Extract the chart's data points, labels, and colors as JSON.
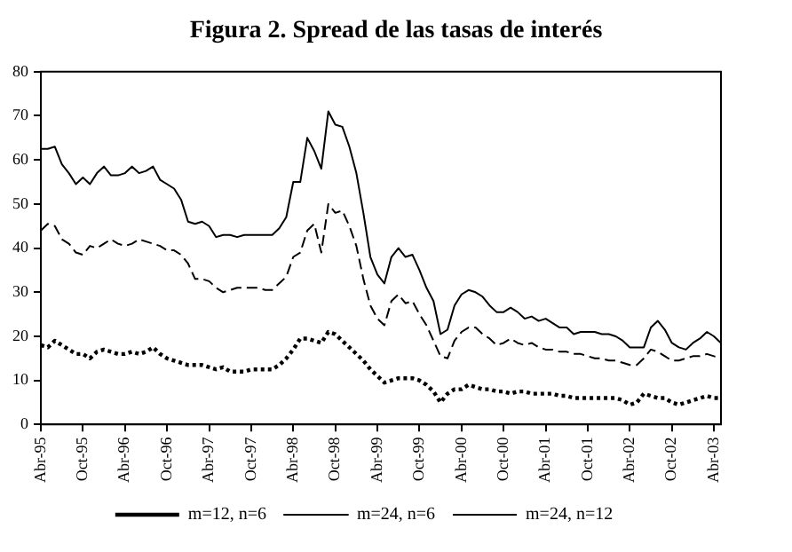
{
  "chart_data": {
    "type": "line",
    "title": "Figura 2. Spread de las tasas de interés",
    "categories": [
      "Abr-95",
      null,
      null,
      null,
      null,
      null,
      "Oct-95",
      null,
      null,
      null,
      null,
      null,
      "Abr-96",
      null,
      null,
      null,
      null,
      null,
      "Oct-96",
      null,
      null,
      null,
      null,
      null,
      "Abr-97",
      null,
      null,
      null,
      null,
      null,
      "Oct-97",
      null,
      null,
      null,
      null,
      null,
      "Abr-98",
      null,
      null,
      null,
      null,
      null,
      "Oct-98",
      null,
      null,
      null,
      null,
      null,
      "Abr-99",
      null,
      null,
      null,
      null,
      null,
      "Oct-99",
      null,
      null,
      null,
      null,
      null,
      "Abr-00",
      null,
      null,
      null,
      null,
      null,
      "Oct-00",
      null,
      null,
      null,
      null,
      null,
      "Abr-01",
      null,
      null,
      null,
      null,
      null,
      "Oct-01",
      null,
      null,
      null,
      null,
      null,
      "Abr-02",
      null,
      null,
      null,
      null,
      null,
      "Oct-02",
      null,
      null,
      null,
      null,
      null,
      "Abr-03",
      null
    ],
    "series": [
      {
        "name": "m=12, n=6",
        "color": "#000000",
        "line_style": "dotted",
        "values": [
          18,
          17.5,
          19,
          18,
          17,
          16,
          16,
          15,
          16.5,
          17,
          16.5,
          16,
          16,
          16.5,
          16,
          16.5,
          17.5,
          16,
          15,
          14.5,
          14,
          13.5,
          13.5,
          13.5,
          13,
          12.5,
          13,
          12,
          12,
          12,
          12.5,
          12.5,
          12.5,
          12.5,
          13.5,
          15,
          17,
          19.5,
          19.5,
          19,
          18.5,
          21,
          20.5,
          19,
          17.5,
          16,
          14.5,
          12.5,
          11,
          9.5,
          10,
          10.5,
          10.5,
          10.5,
          10,
          9,
          7.5,
          5,
          7,
          8,
          8,
          9,
          8.5,
          8,
          8,
          7.5,
          7.5,
          7,
          7.5,
          7.5,
          7,
          7,
          7,
          7,
          6.5,
          6.5,
          6,
          6,
          6,
          6,
          6,
          6,
          6,
          5.5,
          4.5,
          5,
          7,
          6.5,
          6,
          6,
          5,
          4.5,
          5,
          5.5,
          6,
          6.5,
          6,
          6
        ]
      },
      {
        "name": "m=24, n=6",
        "color": "#000000",
        "line_style": "solid",
        "values": [
          62.5,
          62.5,
          63,
          59,
          57,
          54.5,
          56,
          54.5,
          57,
          58.5,
          56.5,
          56.5,
          57,
          58.5,
          57,
          57.5,
          58.5,
          55.5,
          54.5,
          53.5,
          51,
          46,
          45.5,
          46,
          45,
          42.5,
          43,
          43,
          42.5,
          43,
          43,
          43,
          43,
          43,
          44.5,
          47,
          55,
          55,
          65,
          62,
          58,
          71,
          68,
          67.5,
          63,
          57,
          48,
          38,
          34,
          32,
          38,
          40,
          38,
          38.5,
          35,
          31,
          28,
          20.5,
          21.5,
          27,
          29.5,
          30.5,
          30,
          29,
          27,
          25.5,
          25.5,
          26.5,
          25.5,
          24,
          24.5,
          23.5,
          24,
          23,
          22,
          22,
          20.5,
          21,
          21,
          21,
          20.5,
          20.5,
          20,
          19,
          17.5,
          17.5,
          17.5,
          22,
          23.5,
          21.5,
          18.5,
          17.5,
          17,
          18.5,
          19.5,
          21,
          20,
          18.5
        ]
      },
      {
        "name": "m=24, n=12",
        "color": "#000000",
        "line_style": "dashed",
        "values": [
          44,
          45.5,
          45,
          42,
          41,
          39,
          38.5,
          40.5,
          40,
          41,
          42,
          41,
          40.5,
          41,
          42,
          41.5,
          41,
          40.5,
          39.5,
          39.5,
          38.5,
          36.5,
          33,
          33,
          32.5,
          31,
          30,
          30.5,
          31,
          31,
          31,
          31,
          30.5,
          30.5,
          32,
          33.5,
          38,
          39,
          44,
          45.5,
          39,
          50,
          48,
          48.5,
          45,
          40.5,
          33,
          27,
          24,
          22.5,
          28,
          29.5,
          27.5,
          28,
          25,
          22.5,
          19,
          15.5,
          15,
          19,
          21,
          22,
          22,
          20.5,
          19.5,
          18,
          18.5,
          19.5,
          18.5,
          18,
          18.5,
          17.5,
          17,
          17,
          16.5,
          16.5,
          16,
          16,
          15.5,
          15,
          15,
          14.5,
          14.5,
          14,
          13.5,
          13.5,
          15,
          17,
          16.5,
          15.5,
          14.5,
          14.5,
          15,
          15.5,
          15.5,
          16,
          15.5,
          15
        ]
      }
    ],
    "ylim": [
      0,
      80
    ],
    "yticks": [
      0,
      10,
      20,
      30,
      40,
      50,
      60,
      70,
      80
    ],
    "grid": false,
    "legend": "bottom",
    "marker": "none"
  }
}
